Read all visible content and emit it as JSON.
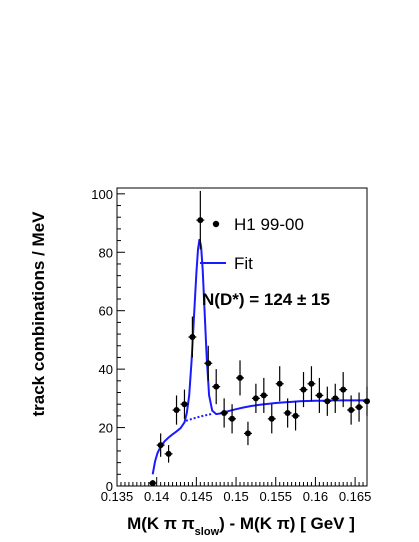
{
  "chart_data": {
    "type": "scatter",
    "xlabel_parts": [
      "M(K ",
      "π",
      " π",
      "slow",
      ") - M(K ",
      "π",
      ") [ GeV ]"
    ],
    "ylabel": "track combinations / MeV",
    "xlim": [
      0.135,
      0.1665
    ],
    "ylim": [
      0,
      102
    ],
    "x_ticks": [
      0.135,
      0.14,
      0.145,
      0.15,
      0.155,
      0.16,
      0.165
    ],
    "x_tick_labels": [
      "0.135",
      "0.14",
      "0.145",
      "0.15",
      "0.155",
      "0.16",
      "0.165"
    ],
    "y_ticks": [
      0,
      20,
      40,
      60,
      80,
      100
    ],
    "y_tick_labels": [
      "0",
      "20",
      "40",
      "60",
      "80",
      "100"
    ],
    "grid": false,
    "legend": {
      "placement": "top-right",
      "entries": [
        {
          "label": "H1 99-00",
          "marker": "dot",
          "color": "#000000"
        },
        {
          "label": "Fit",
          "marker": "line",
          "color": "#1a1aff"
        }
      ]
    },
    "annotation": "N(D*) = 124 ± 15",
    "series": [
      {
        "name": "H1 99-00",
        "color": "#000000",
        "points": [
          {
            "x": 0.1395,
            "y": 1,
            "err": 1
          },
          {
            "x": 0.1405,
            "y": 14,
            "err": 4
          },
          {
            "x": 0.1415,
            "y": 11,
            "err": 3
          },
          {
            "x": 0.1425,
            "y": 26,
            "err": 5
          },
          {
            "x": 0.1435,
            "y": 28,
            "err": 5
          },
          {
            "x": 0.1445,
            "y": 51,
            "err": 7
          },
          {
            "x": 0.1455,
            "y": 91,
            "err": 10
          },
          {
            "x": 0.1465,
            "y": 42,
            "err": 6
          },
          {
            "x": 0.1475,
            "y": 34,
            "err": 6
          },
          {
            "x": 0.1485,
            "y": 25,
            "err": 5
          },
          {
            "x": 0.1495,
            "y": 23,
            "err": 5
          },
          {
            "x": 0.1505,
            "y": 37,
            "err": 6
          },
          {
            "x": 0.1515,
            "y": 18,
            "err": 4
          },
          {
            "x": 0.1525,
            "y": 30,
            "err": 5
          },
          {
            "x": 0.1535,
            "y": 31,
            "err": 6
          },
          {
            "x": 0.1545,
            "y": 23,
            "err": 5
          },
          {
            "x": 0.1555,
            "y": 35,
            "err": 6
          },
          {
            "x": 0.1565,
            "y": 25,
            "err": 5
          },
          {
            "x": 0.1575,
            "y": 24,
            "err": 5
          },
          {
            "x": 0.1585,
            "y": 33,
            "err": 6
          },
          {
            "x": 0.1595,
            "y": 35,
            "err": 6
          },
          {
            "x": 0.1605,
            "y": 31,
            "err": 6
          },
          {
            "x": 0.1615,
            "y": 29,
            "err": 5
          },
          {
            "x": 0.1625,
            "y": 30,
            "err": 5
          },
          {
            "x": 0.1635,
            "y": 33,
            "err": 6
          },
          {
            "x": 0.1645,
            "y": 26,
            "err": 5
          },
          {
            "x": 0.1655,
            "y": 27,
            "err": 5
          },
          {
            "x": 0.1665,
            "y": 29,
            "err": 5
          }
        ]
      }
    ],
    "fit": {
      "name": "Fit",
      "color": "#1a1aff",
      "curve": [
        [
          0.1395,
          4
        ],
        [
          0.1398,
          8.5
        ],
        [
          0.1401,
          11.3
        ],
        [
          0.1405,
          13.5
        ],
        [
          0.141,
          15.3
        ],
        [
          0.1415,
          16.6
        ],
        [
          0.142,
          17.7
        ],
        [
          0.1425,
          18.7
        ],
        [
          0.143,
          19.8
        ],
        [
          0.1435,
          21.8
        ],
        [
          0.1438,
          25
        ],
        [
          0.1441,
          31
        ],
        [
          0.1444,
          43
        ],
        [
          0.1447,
          58
        ],
        [
          0.145,
          73
        ],
        [
          0.1452,
          81
        ],
        [
          0.1454,
          84.5
        ],
        [
          0.1456,
          82
        ],
        [
          0.1458,
          74
        ],
        [
          0.146,
          62
        ],
        [
          0.1463,
          44
        ],
        [
          0.1466,
          31
        ],
        [
          0.147,
          25.8
        ],
        [
          0.1475,
          24.6
        ],
        [
          0.148,
          24.8
        ],
        [
          0.1485,
          25.2
        ],
        [
          0.149,
          25.6
        ],
        [
          0.15,
          26.3
        ],
        [
          0.151,
          26.9
        ],
        [
          0.152,
          27.4
        ],
        [
          0.153,
          27.8
        ],
        [
          0.154,
          28.1
        ],
        [
          0.155,
          28.4
        ],
        [
          0.156,
          28.6
        ],
        [
          0.157,
          28.8
        ],
        [
          0.158,
          29
        ],
        [
          0.159,
          29.1
        ],
        [
          0.16,
          29.2
        ],
        [
          0.161,
          29.2
        ],
        [
          0.162,
          29.3
        ],
        [
          0.163,
          29.3
        ],
        [
          0.164,
          29.3
        ],
        [
          0.165,
          29.3
        ],
        [
          0.1665,
          29.3
        ]
      ],
      "background": [
        [
          0.1437,
          22.3
        ],
        [
          0.144,
          22.6
        ],
        [
          0.1445,
          23
        ],
        [
          0.145,
          23.4
        ],
        [
          0.1455,
          23.8
        ],
        [
          0.146,
          24.1
        ],
        [
          0.1465,
          24.4
        ],
        [
          0.147,
          24.7
        ]
      ]
    }
  }
}
